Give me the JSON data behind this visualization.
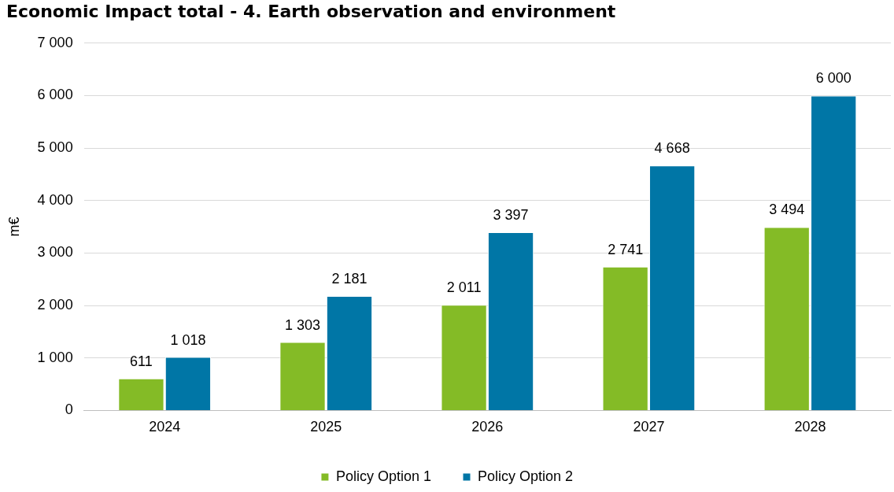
{
  "chart_data": {
    "type": "bar",
    "title": "Economic Impact total - 4. Earth observation and environment",
    "ylabel": "m€",
    "categories": [
      "2024",
      "2025",
      "2026",
      "2027",
      "2028"
    ],
    "series": [
      {
        "name": "Policy Option 1",
        "color": "#84bb26",
        "values": [
          611,
          1303,
          2011,
          2741,
          3494
        ],
        "value_labels": [
          "611",
          "1 303",
          "2 011",
          "2 741",
          "3 494"
        ]
      },
      {
        "name": "Policy Option 2",
        "color": "#0076a6",
        "values": [
          1018,
          2181,
          3397,
          4668,
          6000
        ],
        "value_labels": [
          "1 018",
          "2 181",
          "3 397",
          "4 668",
          "6 000"
        ]
      }
    ],
    "ylim": [
      0,
      7000
    ],
    "yticks": [
      {
        "value": 0,
        "label": "0"
      },
      {
        "value": 1000,
        "label": "1 000"
      },
      {
        "value": 2000,
        "label": "2 000"
      },
      {
        "value": 3000,
        "label": "3 000"
      },
      {
        "value": 4000,
        "label": "4 000"
      },
      {
        "value": 5000,
        "label": "5 000"
      },
      {
        "value": 6000,
        "label": "6 000"
      },
      {
        "value": 7000,
        "label": "7 000"
      }
    ],
    "grid": "y",
    "legend": "bottom"
  }
}
